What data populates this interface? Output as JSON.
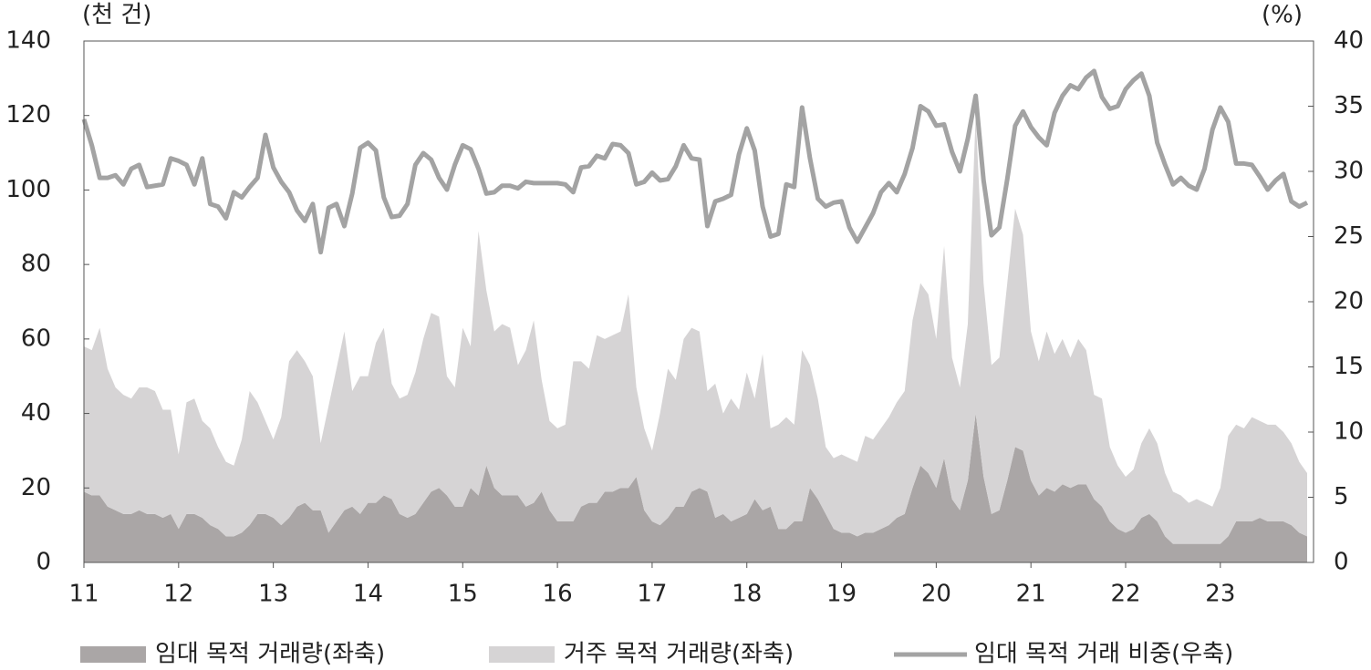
{
  "chart_data": {
    "type": "area",
    "y_unit_label": "(천 건)",
    "y2_unit_label": "(%)",
    "categories": [
      "11",
      null,
      null,
      null,
      null,
      null,
      null,
      null,
      null,
      null,
      null,
      null,
      "12",
      null,
      null,
      null,
      null,
      null,
      null,
      null,
      null,
      null,
      null,
      null,
      "13",
      null,
      null,
      null,
      null,
      null,
      null,
      null,
      null,
      null,
      null,
      null,
      "14",
      null,
      null,
      null,
      null,
      null,
      null,
      null,
      null,
      null,
      null,
      null,
      "15",
      null,
      null,
      null,
      null,
      null,
      null,
      null,
      null,
      null,
      null,
      null,
      "16",
      null,
      null,
      null,
      null,
      null,
      null,
      null,
      null,
      null,
      null,
      null,
      "17",
      null,
      null,
      null,
      null,
      null,
      null,
      null,
      null,
      null,
      null,
      null,
      "18",
      null,
      null,
      null,
      null,
      null,
      null,
      null,
      null,
      null,
      null,
      null,
      "19",
      null,
      null,
      null,
      null,
      null,
      null,
      null,
      null,
      null,
      null,
      null,
      "20",
      null,
      null,
      null,
      null,
      null,
      null,
      null,
      null,
      null,
      null,
      null,
      "21",
      null,
      null,
      null,
      null,
      null,
      null,
      null,
      null,
      null,
      null,
      null,
      "22",
      null,
      null,
      null,
      null,
      null,
      null,
      null,
      null,
      null,
      null,
      null,
      "23",
      null,
      null,
      null,
      null,
      null,
      null,
      null,
      null,
      null,
      null,
      null
    ],
    "series": [
      {
        "name": "임대 목적 거래량(좌축)",
        "type": "area",
        "stacked": true,
        "color": "#aaa6a6",
        "values": [
          19,
          18,
          18,
          15,
          14,
          13,
          13,
          14,
          13,
          13,
          12,
          13,
          9,
          13,
          13,
          12,
          10,
          9,
          7,
          7,
          8,
          10,
          13,
          13,
          12,
          10,
          12,
          15,
          16,
          14,
          14,
          8,
          11,
          14,
          15,
          13,
          16,
          16,
          18,
          17,
          13,
          12,
          13,
          16,
          19,
          20,
          18,
          15,
          15,
          20,
          18,
          26,
          20,
          18,
          18,
          18,
          15,
          16,
          19,
          14,
          11,
          11,
          11,
          15,
          16,
          16,
          19,
          19,
          20,
          20,
          23,
          14,
          11,
          10,
          12,
          15,
          15,
          19,
          20,
          19,
          12,
          13,
          11,
          12,
          13,
          17,
          14,
          15,
          9,
          9,
          11,
          11,
          20,
          17,
          13,
          9,
          8,
          8,
          7,
          8,
          8,
          9,
          10,
          12,
          13,
          20,
          26,
          24,
          20,
          28,
          17,
          14,
          22,
          40,
          23,
          13,
          14,
          22,
          31,
          30,
          22,
          18,
          20,
          19,
          21,
          20,
          21,
          21,
          17,
          15,
          11,
          9,
          8,
          9,
          12,
          13,
          11,
          7,
          5,
          5,
          5,
          5,
          5,
          5,
          5,
          7,
          11,
          11,
          11,
          12,
          11,
          11,
          11,
          10,
          8,
          7
        ]
      },
      {
        "name": "거주 목적 거래량(좌축)",
        "type": "area",
        "stacked": true,
        "color": "#d6d4d5",
        "values": [
          39,
          39,
          45,
          37,
          33,
          32,
          31,
          33,
          34,
          33,
          29,
          28,
          20,
          30,
          31,
          26,
          26,
          22,
          20,
          19,
          25,
          36,
          30,
          25,
          21,
          29,
          42,
          42,
          38,
          36,
          18,
          34,
          41,
          48,
          31,
          37,
          34,
          43,
          45,
          31,
          31,
          33,
          38,
          44,
          48,
          46,
          32,
          32,
          48,
          38,
          71,
          47,
          42,
          46,
          45,
          35,
          42,
          49,
          30,
          24,
          25,
          26,
          43,
          39,
          36,
          45,
          41,
          42,
          42,
          52,
          24,
          22,
          19,
          30,
          40,
          34,
          45,
          44,
          42,
          27,
          36,
          27,
          33,
          29,
          38,
          27,
          42,
          21,
          28,
          30,
          26,
          46,
          33,
          27,
          18,
          19,
          21,
          20,
          20,
          26,
          25,
          27,
          29,
          31,
          33,
          45,
          49,
          48,
          40,
          57,
          38,
          33,
          42,
          80,
          52,
          40,
          41,
          53,
          64,
          58,
          40,
          36,
          42,
          37,
          39,
          35,
          39,
          36,
          28,
          29,
          20,
          17,
          15,
          16,
          20,
          23,
          21,
          17,
          14,
          13,
          11,
          12,
          11,
          10,
          15,
          27,
          26,
          25,
          28,
          26,
          26,
          26,
          24,
          22,
          19,
          17
        ]
      },
      {
        "name": "임대 목적 거래 비중(우축)",
        "type": "line",
        "axis": "y2",
        "color": "#a3a3a3",
        "values": [
          34,
          32,
          29.5,
          29.5,
          29.7,
          29,
          30.2,
          30.5,
          28.8,
          28.9,
          29,
          31,
          30.8,
          30.5,
          29,
          31,
          27.5,
          27.3,
          26.4,
          28.4,
          28,
          28.8,
          29.5,
          32.8,
          30.3,
          29.2,
          28.4,
          27,
          26.2,
          27.5,
          23.8,
          27.2,
          27.5,
          25.8,
          28.3,
          31.8,
          32.2,
          31.6,
          28,
          26.5,
          26.6,
          27.5,
          30.5,
          31.4,
          30.9,
          29.5,
          28.6,
          30.5,
          32,
          31.7,
          30.2,
          28.3,
          28.4,
          28.9,
          28.9,
          28.7,
          29.2,
          29.1,
          29.1,
          29.1,
          29.1,
          29,
          28.4,
          30.3,
          30.4,
          31.2,
          31,
          32.1,
          32,
          31.4,
          29,
          29.2,
          29.9,
          29.3,
          29.4,
          30.4,
          32,
          31,
          30.9,
          25.8,
          27.7,
          27.9,
          28.2,
          31.3,
          33.3,
          31.6,
          27.3,
          25,
          25.2,
          29,
          28.8,
          34.9,
          31,
          27.9,
          27.3,
          27.6,
          27.7,
          25.7,
          24.6,
          25.7,
          26.8,
          28.4,
          29.1,
          28.4,
          29.8,
          31.8,
          35,
          34.6,
          33.5,
          33.6,
          31.5,
          30,
          32.5,
          35.8,
          29.3,
          25.1,
          25.7,
          29.4,
          33.5,
          34.6,
          33.4,
          32.6,
          32,
          34.5,
          35.8,
          36.6,
          36.3,
          37.2,
          37.7,
          35.7,
          34.8,
          35,
          36.3,
          37,
          37.5,
          35.8,
          32.2,
          30.5,
          29,
          29.5,
          28.9,
          28.6,
          30.2,
          33.2,
          34.9,
          33.8,
          30.6,
          30.6,
          30.5,
          29.6,
          28.6,
          29.3,
          29.8,
          27.7,
          27.3,
          27.6
        ]
      }
    ],
    "ylim": [
      0,
      140
    ],
    "yticks": [
      0,
      20,
      40,
      60,
      80,
      100,
      120,
      140
    ],
    "y2lim": [
      0,
      40
    ],
    "y2ticks": [
      0,
      5,
      10,
      15,
      20,
      25,
      30,
      35,
      40
    ],
    "legend": "bottom"
  }
}
